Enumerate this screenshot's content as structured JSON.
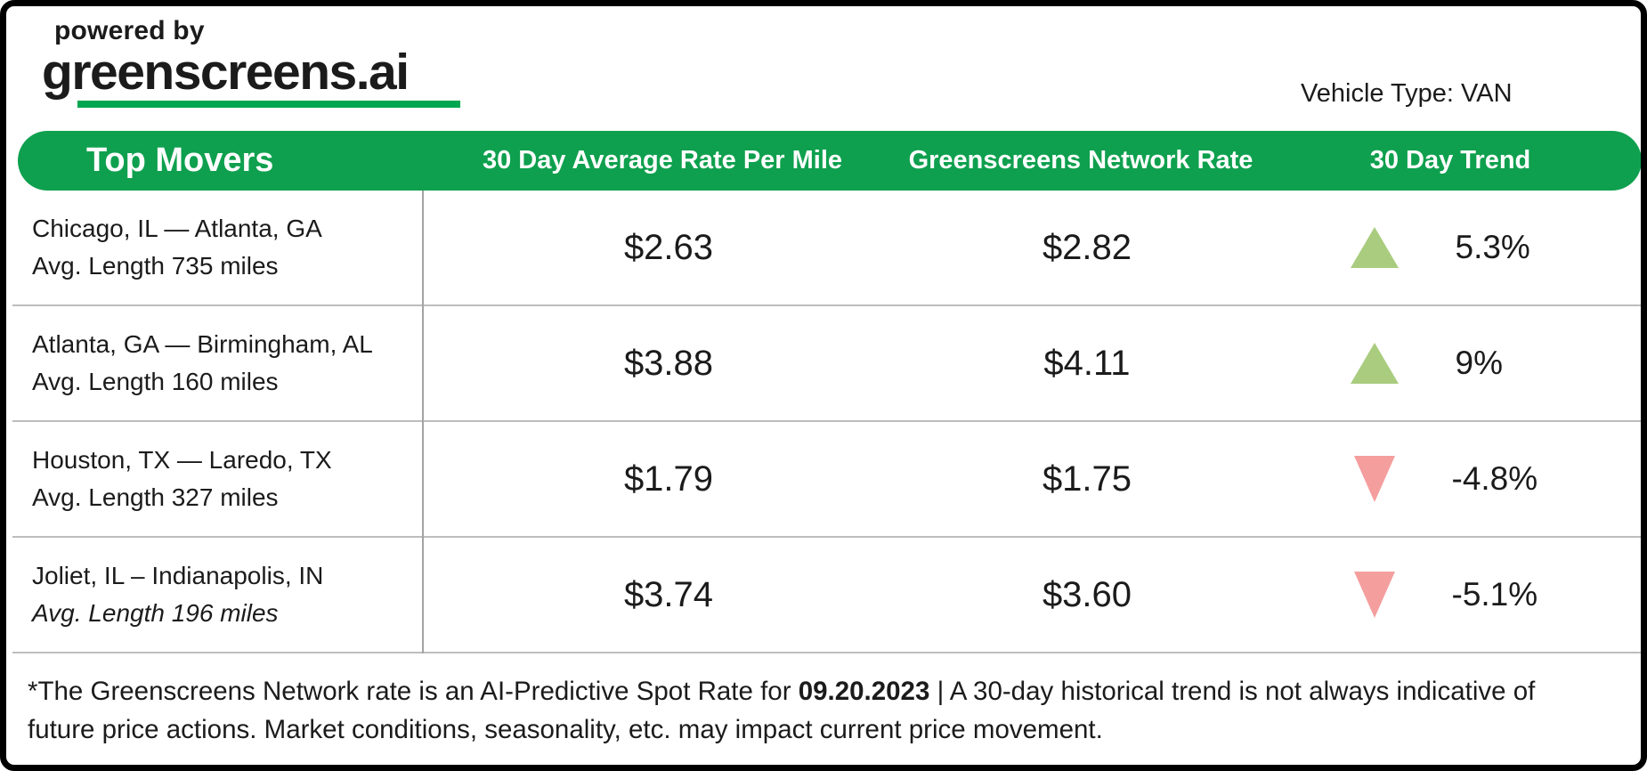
{
  "branding": {
    "powered_by": "powered by",
    "logo_text": "greenscreens.ai",
    "underline_color": "#00A651"
  },
  "header": {
    "vehicle_type": "Vehicle Type: VAN"
  },
  "table": {
    "header": {
      "col1": "Top Movers",
      "col2": "30 Day Average Rate Per Mile",
      "col3": "Greenscreens Network Rate",
      "col4": "30 Day Trend",
      "bg_color": "#0EA04E"
    },
    "rows": [
      {
        "lane": "Chicago, IL — Atlanta, GA",
        "length": "Avg. Length 735 miles",
        "avg_rate": "$2.63",
        "network_rate": "$2.82",
        "trend": "5.3%",
        "direction": "up",
        "length_italic": false
      },
      {
        "lane": "Atlanta, GA — Birmingham, AL",
        "length": "Avg. Length 160 miles",
        "avg_rate": "$3.88",
        "network_rate": "$4.11",
        "trend": "9%",
        "direction": "up",
        "length_italic": false
      },
      {
        "lane": "Houston, TX — Laredo, TX",
        "length": "Avg. Length 327 miles",
        "avg_rate": "$1.79",
        "network_rate": "$1.75",
        "trend": "-4.8%",
        "direction": "down",
        "length_italic": false
      },
      {
        "lane": "Joliet, IL – Indianapolis, IN",
        "length": "Avg. Length 196 miles",
        "avg_rate": "$3.74",
        "network_rate": "$3.60",
        "trend": "-5.1%",
        "direction": "down",
        "length_italic": true
      }
    ]
  },
  "footer": {
    "prefix": "*The Greenscreens Network rate is an AI-Predictive Spot Rate for ",
    "date": "09.20.2023",
    "suffix": " | A 30-day historical trend is not always indicative of future price actions. Market conditions, seasonality, etc. may impact current price movement."
  },
  "colors": {
    "header_green": "#0EA04E",
    "brand_underline_green": "#00A651",
    "trend_up": "#A9CC7E",
    "trend_down": "#F59E9E"
  }
}
